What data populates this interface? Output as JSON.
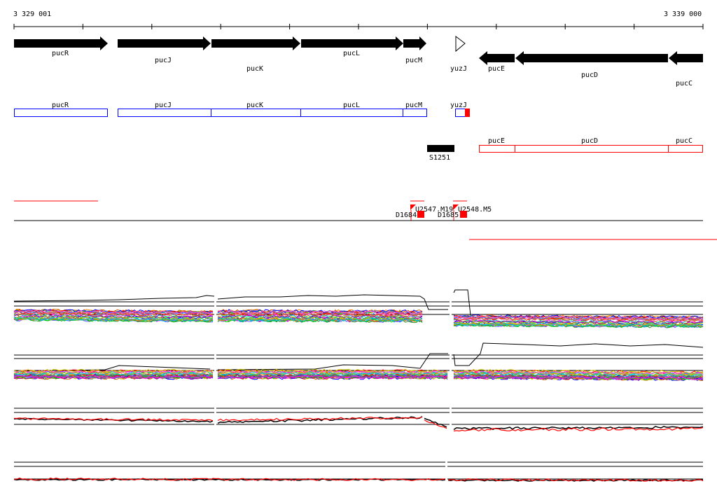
{
  "ruler": {
    "start_label": "3 329 001",
    "end_label": "3 339 000"
  },
  "genes_arrows": [
    {
      "name": "pucR",
      "strand": "+"
    },
    {
      "name": "pucJ",
      "strand": "+"
    },
    {
      "name": "pucK",
      "strand": "+"
    },
    {
      "name": "pucL",
      "strand": "+"
    },
    {
      "name": "pucM",
      "strand": "+"
    },
    {
      "name": "yuzJ",
      "strand": "+",
      "outline": true
    },
    {
      "name": "pucE",
      "strand": "-"
    },
    {
      "name": "pucD",
      "strand": "-"
    },
    {
      "name": "pucC",
      "strand": "-"
    }
  ],
  "operons_forward": [
    {
      "name": "pucR"
    },
    {
      "name": "pucJ"
    },
    {
      "name": "pucK"
    },
    {
      "name": "pucL"
    },
    {
      "name": "pucM"
    },
    {
      "name": "yuzJ"
    }
  ],
  "operons_reverse": [
    {
      "name": "pucE"
    },
    {
      "name": "pucD"
    },
    {
      "name": "pucC"
    }
  ],
  "feature": {
    "name": "S1251"
  },
  "markers": [
    {
      "name": "U2547.M19"
    },
    {
      "name": "U2548.M5"
    },
    {
      "name": "D1684"
    },
    {
      "name": "D1685"
    }
  ],
  "colors": {
    "gene_arrow": "#000000",
    "forward_box": "#0000ff",
    "reverse_box": "#ff0000",
    "marker": "#ff0000",
    "axis": "#000000"
  }
}
